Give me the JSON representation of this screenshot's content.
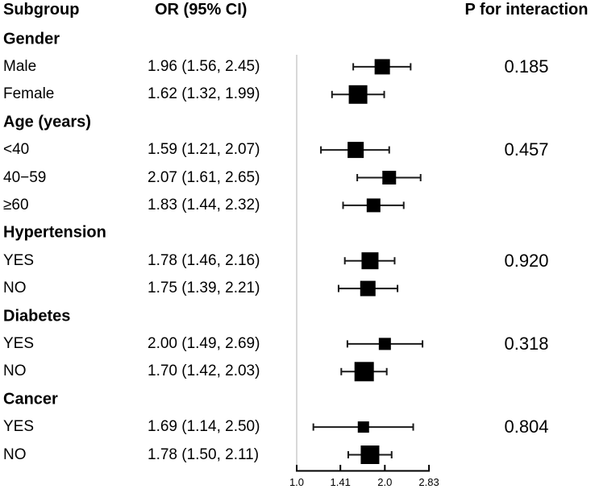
{
  "header": {
    "subgroup": "Subgroup",
    "or_ci": "OR (95% CI)",
    "p_for_interaction": "P for interaction"
  },
  "colors": {
    "text": "#000000",
    "marker": "#000000",
    "ci_line": "#1a1a1a",
    "reference_line": "#d8d8d8",
    "axis": "#000000",
    "background": "#ffffff"
  },
  "chart_data": {
    "type": "forest",
    "scale": "log2",
    "x_axis": {
      "min": 1.0,
      "max": 2.83,
      "ticks": [
        1.0,
        1.41,
        2.0,
        2.83
      ],
      "labels": [
        "1.0",
        "1.41",
        "2.0",
        "2.83"
      ],
      "reference_line": 1.0
    },
    "groups": [
      {
        "label": "Gender",
        "p_for_interaction": "0.185",
        "rows": [
          {
            "label": "Male",
            "or": 1.96,
            "ci_low": 1.56,
            "ci_high": 2.45,
            "or_ci_text": "1.96 (1.56, 2.45)",
            "marker_size": 19
          },
          {
            "label": "Female",
            "or": 1.62,
            "ci_low": 1.32,
            "ci_high": 1.99,
            "or_ci_text": "1.62 (1.32, 1.99)",
            "marker_size": 23
          }
        ]
      },
      {
        "label": "Age (years)",
        "p_for_interaction": "0.457",
        "rows": [
          {
            "label": "<40",
            "or": 1.59,
            "ci_low": 1.21,
            "ci_high": 2.07,
            "or_ci_text": "1.59 (1.21, 2.07)",
            "marker_size": 20
          },
          {
            "label": "40−59",
            "or": 2.07,
            "ci_low": 1.61,
            "ci_high": 2.65,
            "or_ci_text": "2.07 (1.61, 2.65)",
            "marker_size": 17
          },
          {
            "label": "≥60",
            "or": 1.83,
            "ci_low": 1.44,
            "ci_high": 2.32,
            "or_ci_text": "1.83 (1.44, 2.32)",
            "marker_size": 17
          }
        ]
      },
      {
        "label": "Hypertension",
        "p_for_interaction": "0.920",
        "rows": [
          {
            "label": "YES",
            "or": 1.78,
            "ci_low": 1.46,
            "ci_high": 2.16,
            "or_ci_text": "1.78 (1.46, 2.16)",
            "marker_size": 21
          },
          {
            "label": "NO",
            "or": 1.75,
            "ci_low": 1.39,
            "ci_high": 2.21,
            "or_ci_text": "1.75 (1.39, 2.21)",
            "marker_size": 19
          }
        ]
      },
      {
        "label": "Diabetes",
        "p_for_interaction": "0.318",
        "rows": [
          {
            "label": "YES",
            "or": 2.0,
            "ci_low": 1.49,
            "ci_high": 2.69,
            "or_ci_text": "2.00 (1.49, 2.69)",
            "marker_size": 15
          },
          {
            "label": "NO",
            "or": 1.7,
            "ci_low": 1.42,
            "ci_high": 2.03,
            "or_ci_text": "1.70 (1.42, 2.03)",
            "marker_size": 24
          }
        ]
      },
      {
        "label": "Cancer",
        "p_for_interaction": "0.804",
        "rows": [
          {
            "label": "YES",
            "or": 1.69,
            "ci_low": 1.14,
            "ci_high": 2.5,
            "or_ci_text": "1.69 (1.14, 2.50)",
            "marker_size": 14
          },
          {
            "label": "NO",
            "or": 1.78,
            "ci_low": 1.5,
            "ci_high": 2.11,
            "or_ci_text": "1.78 (1.50, 2.11)",
            "marker_size": 23
          }
        ]
      }
    ]
  }
}
